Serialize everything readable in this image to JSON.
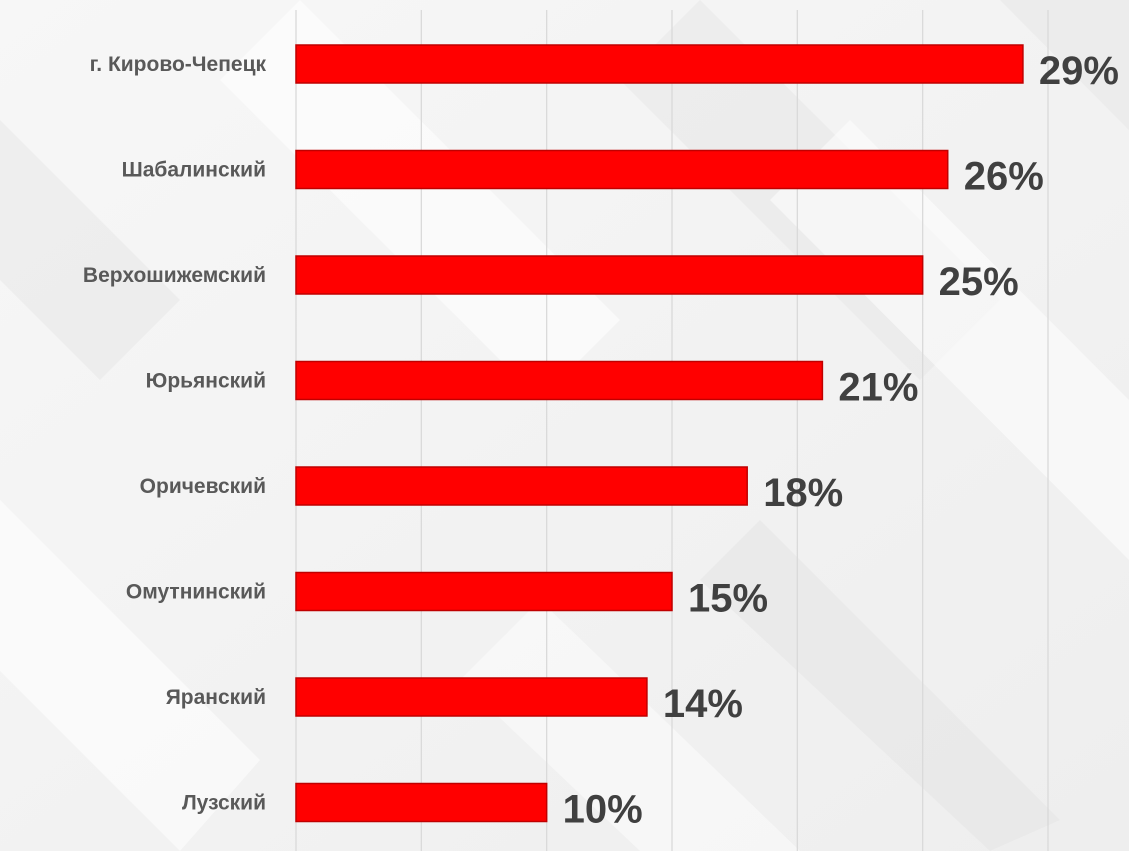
{
  "chart_data": {
    "type": "bar",
    "orientation": "horizontal",
    "categories": [
      "г. Кирово-Чепецк",
      "Шабалинский",
      "Верхошижемский",
      "Юрьянский",
      "Оричевский",
      "Омутнинский",
      "Яранский",
      "Лузский"
    ],
    "values": [
      29,
      26,
      25,
      21,
      18,
      15,
      14,
      10
    ],
    "data_labels": [
      "29%",
      "26%",
      "25%",
      "21%",
      "18%",
      "15%",
      "14%",
      "10%"
    ],
    "xlim": [
      0,
      30
    ],
    "x_gridlines": [
      0,
      5,
      10,
      15,
      20,
      25,
      30
    ],
    "grid": true,
    "show_x_tick_labels": false,
    "legend": "none",
    "bar_color": "#ff0000",
    "bar_edge_color": "#c00000"
  }
}
